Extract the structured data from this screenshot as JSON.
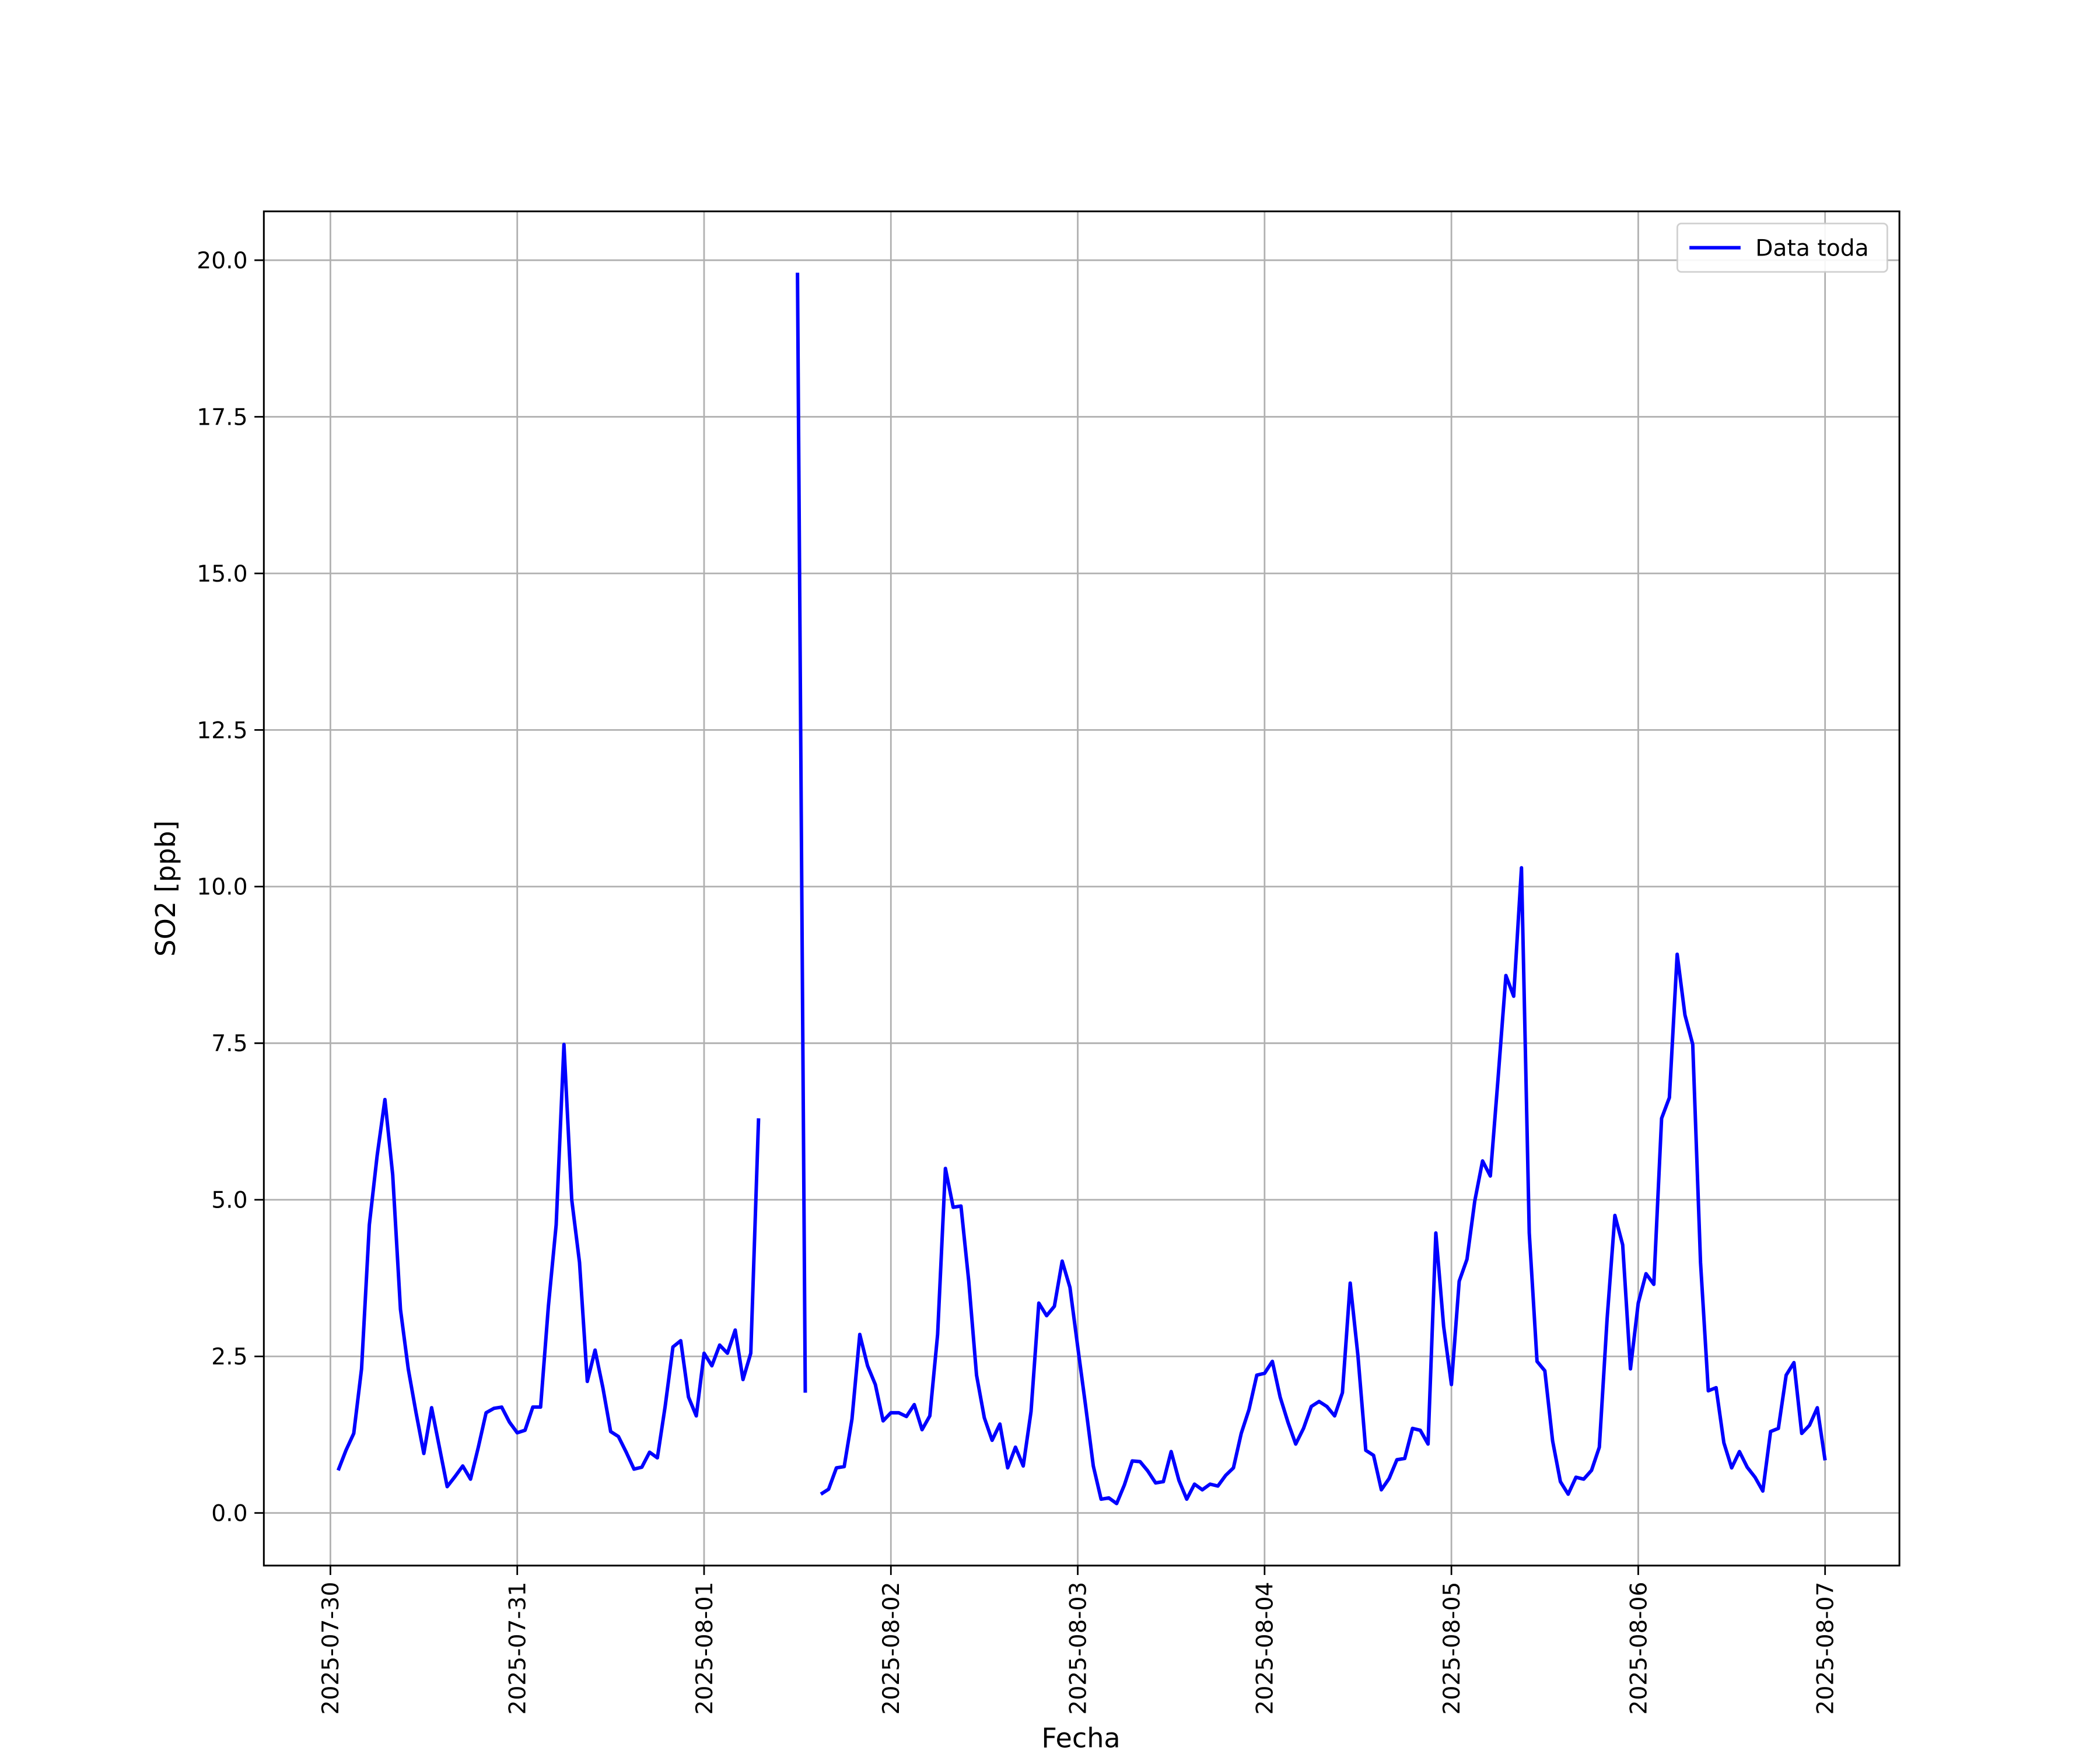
{
  "chart_data": {
    "type": "line",
    "xlabel": "Fecha",
    "ylabel": "SO2 [ppb]",
    "x": [
      "2025-07-30 01:00",
      "2025-07-30 02:00",
      "2025-07-30 03:00",
      "2025-07-30 04:00",
      "2025-07-30 05:00",
      "2025-07-30 06:00",
      "2025-07-30 07:00",
      "2025-07-30 08:00",
      "2025-07-30 09:00",
      "2025-07-30 10:00",
      "2025-07-30 11:00",
      "2025-07-30 12:00",
      "2025-07-30 13:00",
      "2025-07-30 14:00",
      "2025-07-30 15:00",
      "2025-07-30 16:00",
      "2025-07-30 17:00",
      "2025-07-30 18:00",
      "2025-07-30 19:00",
      "2025-07-30 20:00",
      "2025-07-30 21:00",
      "2025-07-30 22:00",
      "2025-07-30 23:00",
      "2025-07-31 00:00",
      "2025-07-31 01:00",
      "2025-07-31 02:00",
      "2025-07-31 03:00",
      "2025-07-31 04:00",
      "2025-07-31 05:00",
      "2025-07-31 06:00",
      "2025-07-31 07:00",
      "2025-07-31 08:00",
      "2025-07-31 09:00",
      "2025-07-31 10:00",
      "2025-07-31 11:00",
      "2025-07-31 12:00",
      "2025-07-31 13:00",
      "2025-07-31 14:00",
      "2025-07-31 15:00",
      "2025-07-31 16:00",
      "2025-07-31 17:00",
      "2025-07-31 18:00",
      "2025-07-31 19:00",
      "2025-07-31 20:00",
      "2025-07-31 21:00",
      "2025-07-31 22:00",
      "2025-07-31 23:00",
      "2025-08-01 00:00",
      "2025-08-01 01:00",
      "2025-08-01 02:00",
      "2025-08-01 03:00",
      "2025-08-01 04:00",
      "2025-08-01 05:00",
      "2025-08-01 06:00",
      "2025-08-01 07:00",
      "2025-08-01 08:00",
      "2025-08-01 09:00",
      "2025-08-01 10:00",
      "2025-08-01 11:00",
      "2025-08-01 12:00",
      "2025-08-01 13:00",
      "2025-08-01 14:00",
      "2025-08-01 15:00",
      "2025-08-01 16:00",
      "2025-08-01 17:00",
      "2025-08-01 18:00",
      "2025-08-01 19:00",
      "2025-08-01 20:00",
      "2025-08-01 21:00",
      "2025-08-01 22:00",
      "2025-08-01 23:00",
      "2025-08-02 00:00",
      "2025-08-02 01:00",
      "2025-08-02 02:00",
      "2025-08-02 03:00",
      "2025-08-02 04:00",
      "2025-08-02 05:00",
      "2025-08-02 06:00",
      "2025-08-02 07:00",
      "2025-08-02 08:00",
      "2025-08-02 09:00",
      "2025-08-02 10:00",
      "2025-08-02 11:00",
      "2025-08-02 12:00",
      "2025-08-02 13:00",
      "2025-08-02 14:00",
      "2025-08-02 15:00",
      "2025-08-02 16:00",
      "2025-08-02 17:00",
      "2025-08-02 18:00",
      "2025-08-02 19:00",
      "2025-08-02 20:00",
      "2025-08-02 21:00",
      "2025-08-02 22:00",
      "2025-08-02 23:00",
      "2025-08-03 00:00",
      "2025-08-03 01:00",
      "2025-08-03 02:00",
      "2025-08-03 03:00",
      "2025-08-03 04:00",
      "2025-08-03 05:00",
      "2025-08-03 06:00",
      "2025-08-03 07:00",
      "2025-08-03 08:00",
      "2025-08-03 09:00",
      "2025-08-03 10:00",
      "2025-08-03 11:00",
      "2025-08-03 12:00",
      "2025-08-03 13:00",
      "2025-08-03 14:00",
      "2025-08-03 15:00",
      "2025-08-03 16:00",
      "2025-08-03 17:00",
      "2025-08-03 18:00",
      "2025-08-03 19:00",
      "2025-08-03 20:00",
      "2025-08-03 21:00",
      "2025-08-03 22:00",
      "2025-08-03 23:00",
      "2025-08-04 00:00",
      "2025-08-04 01:00",
      "2025-08-04 02:00",
      "2025-08-04 03:00",
      "2025-08-04 04:00",
      "2025-08-04 05:00",
      "2025-08-04 06:00",
      "2025-08-04 07:00",
      "2025-08-04 08:00",
      "2025-08-04 09:00",
      "2025-08-04 10:00",
      "2025-08-04 11:00",
      "2025-08-04 12:00",
      "2025-08-04 13:00",
      "2025-08-04 14:00",
      "2025-08-04 15:00",
      "2025-08-04 16:00",
      "2025-08-04 17:00",
      "2025-08-04 18:00",
      "2025-08-04 19:00",
      "2025-08-04 20:00",
      "2025-08-04 21:00",
      "2025-08-04 22:00",
      "2025-08-04 23:00",
      "2025-08-05 00:00",
      "2025-08-05 01:00",
      "2025-08-05 02:00",
      "2025-08-05 03:00",
      "2025-08-05 04:00",
      "2025-08-05 05:00",
      "2025-08-05 06:00",
      "2025-08-05 07:00",
      "2025-08-05 08:00",
      "2025-08-05 09:00",
      "2025-08-05 10:00",
      "2025-08-05 11:00",
      "2025-08-05 12:00",
      "2025-08-05 13:00",
      "2025-08-05 14:00",
      "2025-08-05 15:00",
      "2025-08-05 16:00",
      "2025-08-05 17:00",
      "2025-08-05 18:00",
      "2025-08-05 19:00",
      "2025-08-05 20:00",
      "2025-08-05 21:00",
      "2025-08-05 22:00",
      "2025-08-05 23:00",
      "2025-08-06 00:00",
      "2025-08-06 01:00",
      "2025-08-06 02:00",
      "2025-08-06 03:00",
      "2025-08-06 04:00",
      "2025-08-06 05:00",
      "2025-08-06 06:00",
      "2025-08-06 07:00",
      "2025-08-06 08:00",
      "2025-08-06 09:00",
      "2025-08-06 10:00",
      "2025-08-06 11:00",
      "2025-08-06 12:00",
      "2025-08-06 13:00",
      "2025-08-06 14:00",
      "2025-08-06 15:00",
      "2025-08-06 16:00",
      "2025-08-06 17:00",
      "2025-08-06 18:00",
      "2025-08-06 19:00",
      "2025-08-06 20:00",
      "2025-08-06 21:00",
      "2025-08-06 22:00",
      "2025-08-06 23:00",
      "2025-08-07 00:00"
    ],
    "series": [
      {
        "name": "Data toda",
        "color": "#0000ff",
        "values": [
          0.68,
          1.0,
          1.27,
          2.3,
          4.6,
          5.7,
          6.6,
          5.4,
          3.25,
          2.3,
          1.6,
          0.95,
          1.68,
          1.05,
          0.42,
          0.58,
          0.75,
          0.54,
          1.05,
          1.6,
          1.67,
          1.69,
          1.45,
          1.28,
          1.32,
          1.69,
          1.69,
          3.3,
          4.6,
          7.48,
          5.0,
          4.0,
          2.1,
          2.6,
          2.0,
          1.3,
          1.22,
          0.97,
          0.7,
          0.73,
          0.97,
          0.88,
          1.7,
          2.65,
          2.75,
          1.85,
          1.55,
          2.55,
          2.35,
          2.68,
          2.55,
          2.92,
          2.13,
          2.55,
          6.3,
          null,
          null,
          null,
          null,
          19.8,
          1.92,
          null,
          0.3,
          0.38,
          0.72,
          0.74,
          1.5,
          2.85,
          2.35,
          2.05,
          1.47,
          1.6,
          1.6,
          1.54,
          1.73,
          1.33,
          1.55,
          2.85,
          5.5,
          4.88,
          4.9,
          3.7,
          2.2,
          1.52,
          1.16,
          1.42,
          0.72,
          1.05,
          0.75,
          1.62,
          3.35,
          3.15,
          3.3,
          4.02,
          3.6,
          2.65,
          1.72,
          0.75,
          0.22,
          0.24,
          0.15,
          0.45,
          0.83,
          0.82,
          0.67,
          0.48,
          0.5,
          0.98,
          0.52,
          0.22,
          0.46,
          0.37,
          0.46,
          0.43,
          0.6,
          0.72,
          1.27,
          1.65,
          2.2,
          2.23,
          2.42,
          1.85,
          1.45,
          1.1,
          1.35,
          1.7,
          1.78,
          1.7,
          1.55,
          1.92,
          3.67,
          2.5,
          1.0,
          0.92,
          0.37,
          0.55,
          0.85,
          0.87,
          1.35,
          1.32,
          1.1,
          4.47,
          2.98,
          2.05,
          3.7,
          4.05,
          4.98,
          5.62,
          5.38,
          6.95,
          8.58,
          8.25,
          10.3,
          4.47,
          2.42,
          2.27,
          1.15,
          0.5,
          0.3,
          0.57,
          0.54,
          0.68,
          1.05,
          3.1,
          4.75,
          4.28,
          2.3,
          3.35,
          3.82,
          3.65,
          6.3,
          6.63,
          8.92,
          7.95,
          7.48,
          4.0,
          1.95,
          2.0,
          1.12,
          0.72,
          0.98,
          0.73,
          0.57,
          0.35,
          1.3,
          1.35,
          2.2,
          2.4,
          1.27,
          1.4,
          1.68,
          0.84
        ]
      }
    ],
    "xlim": [
      "2025-07-29 15:27",
      "2025-08-07 09:33"
    ],
    "xticks": [
      "2025-07-30",
      "2025-07-31",
      "2025-08-01",
      "2025-08-02",
      "2025-08-03",
      "2025-08-04",
      "2025-08-05",
      "2025-08-06",
      "2025-08-07"
    ],
    "ylim": [
      -0.84,
      20.78
    ],
    "yticks": [
      {
        "value": 0,
        "label": "0.0"
      },
      2.5,
      {
        "value": 5,
        "label": "5.0"
      },
      7.5,
      {
        "value": 10,
        "label": "10.0"
      },
      12.5,
      {
        "value": 15,
        "label": "15.0"
      },
      17.5,
      {
        "value": 20,
        "label": "20.0"
      }
    ],
    "grid": true,
    "legend": "upper right"
  }
}
